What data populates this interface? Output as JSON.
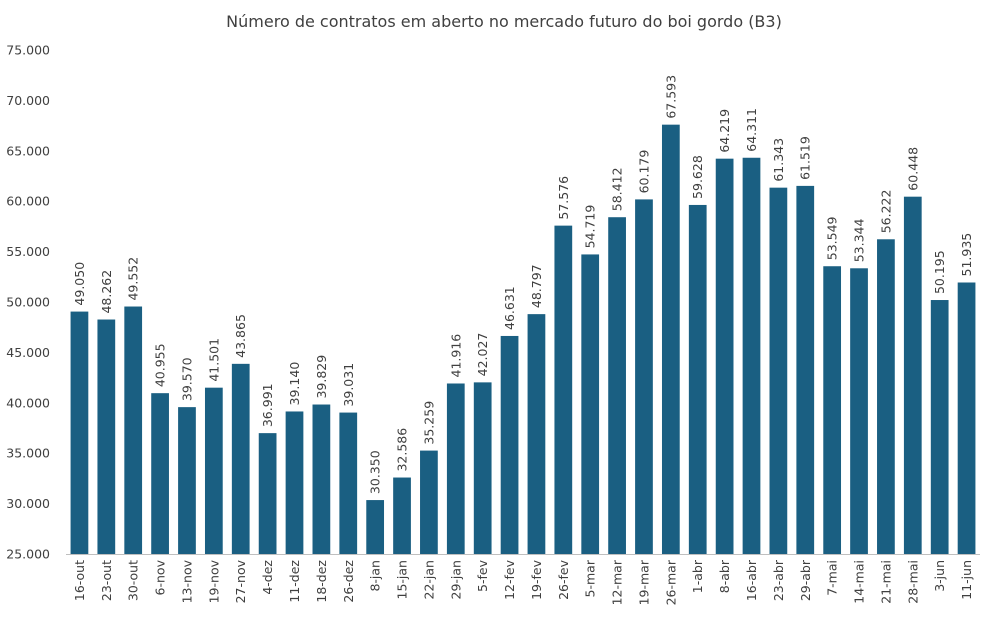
{
  "chart_data": {
    "type": "bar",
    "title": "Número de contratos em aberto no mercado futuro do boi gordo (B3)",
    "xlabel": "",
    "ylabel": "",
    "ylim": [
      25000,
      75000
    ],
    "y_ticks": [
      25000,
      30000,
      35000,
      40000,
      45000,
      50000,
      55000,
      60000,
      65000,
      70000,
      75000
    ],
    "y_tick_labels": [
      "25.000",
      "30.000",
      "35.000",
      "40.000",
      "45.000",
      "50.000",
      "55.000",
      "60.000",
      "65.000",
      "70.000",
      "75.000"
    ],
    "grid": false,
    "legend": "none",
    "bar_color": "#1a5f82",
    "categories": [
      "16-out",
      "23-out",
      "30-out",
      "6-nov",
      "13-nov",
      "19-nov",
      "27-nov",
      "4-dez",
      "11-dez",
      "18-dez",
      "26-dez",
      "8-jan",
      "15-jan",
      "22-jan",
      "29-jan",
      "5-fev",
      "12-fev",
      "19-fev",
      "26-fev",
      "5-mar",
      "12-mar",
      "19-mar",
      "26-mar",
      "1-abr",
      "8-abr",
      "16-abr",
      "23-abr",
      "29-abr",
      "7-mai",
      "14-mai",
      "21-mai",
      "28-mai",
      "3-jun",
      "11-jun"
    ],
    "values": [
      49050,
      48262,
      49552,
      40955,
      39570,
      41501,
      43865,
      36991,
      39140,
      39829,
      39031,
      30350,
      32586,
      35259,
      41916,
      42027,
      46631,
      48797,
      57576,
      54719,
      58412,
      60179,
      67593,
      59628,
      64219,
      64311,
      61343,
      61519,
      53549,
      53344,
      56222,
      60448,
      50195,
      51935
    ],
    "value_labels": [
      "49.050",
      "48.262",
      "49.552",
      "40.955",
      "39.570",
      "41.501",
      "43.865",
      "36.991",
      "39.140",
      "39.829",
      "39.031",
      "30.350",
      "32.586",
      "35.259",
      "41.916",
      "42.027",
      "46.631",
      "48.797",
      "57.576",
      "54.719",
      "58.412",
      "60.179",
      "67.593",
      "59.628",
      "64.219",
      "64.311",
      "61.343",
      "61.519",
      "53.549",
      "53.344",
      "56.222",
      "60.448",
      "50.195",
      "51.935"
    ]
  }
}
